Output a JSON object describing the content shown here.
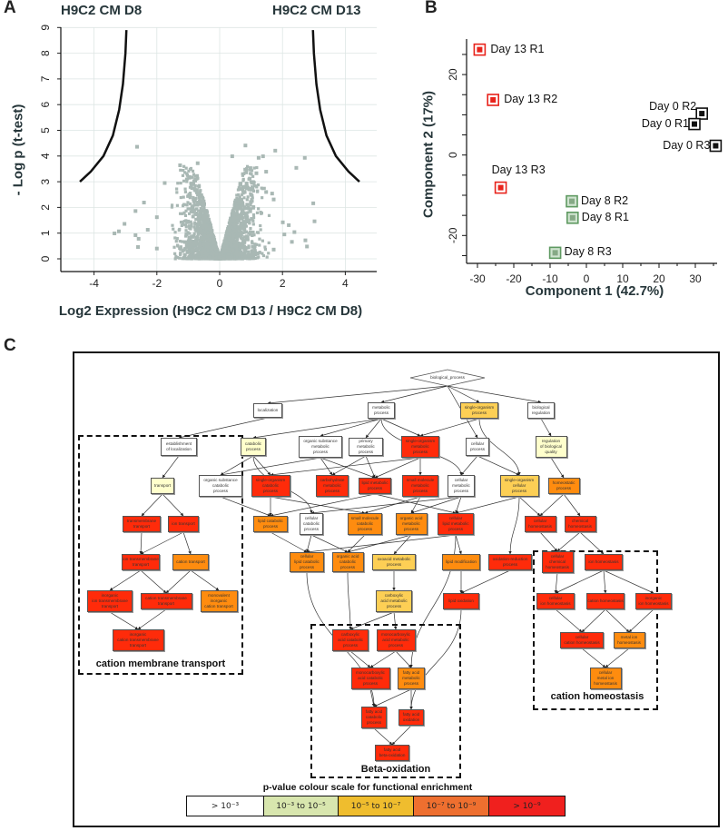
{
  "panel_labels": {
    "a": "A",
    "b": "B",
    "c": "C"
  },
  "chart_data": [
    {
      "type": "scatter",
      "panel": "A",
      "left_title": "H9C2 CM D8",
      "right_title": "H9C2 CM D13",
      "xlabel": "Log2 Expression (H9C2 CM D13 / H9C2 CM D8)",
      "ylabel": "- Log p (t-test)",
      "xlim": [
        -5,
        5
      ],
      "ylim": [
        -0.5,
        9
      ],
      "xticks": [
        -4,
        -2,
        0,
        2,
        4
      ],
      "yticks": [
        0,
        1,
        2,
        3,
        4,
        5,
        6,
        7,
        8,
        9
      ],
      "grid": true,
      "point_color": "#a9b8b4",
      "points": [
        [
          -2.63,
          4.36
        ],
        [
          0.82,
          4.41
        ],
        [
          1.77,
          4.21
        ],
        [
          2.71,
          3.93
        ],
        [
          2.44,
          3.54
        ],
        [
          2.98,
          2.16
        ],
        [
          3.02,
          1.46
        ],
        [
          2.73,
          0.72
        ],
        [
          2.78,
          0.48
        ],
        [
          -3.35,
          0.99
        ],
        [
          -3.21,
          1.07
        ],
        [
          -3.03,
          1.36
        ],
        [
          -2.68,
          1.86
        ],
        [
          -2.41,
          2.19
        ],
        [
          -2.68,
          0.92
        ],
        [
          -2.58,
          0.78
        ],
        [
          -2.6,
          0.46
        ],
        [
          -2.29,
          1.13
        ],
        [
          -2.0,
          0.4
        ],
        [
          -2.0,
          1.62
        ],
        [
          -1.75,
          2.95
        ],
        [
          -1.26,
          3.64
        ],
        [
          -0.7,
          3.72
        ],
        [
          0.4,
          3.99
        ],
        [
          1.38,
          3.99
        ],
        [
          1.24,
          3.93
        ],
        [
          0.98,
          3.53
        ],
        [
          1.17,
          3.33
        ],
        [
          1.48,
          3.39
        ],
        [
          2.38,
          1.04
        ],
        [
          2.2,
          1.31
        ],
        [
          2.01,
          1.42
        ],
        [
          1.72,
          0.36
        ],
        [
          2.3,
          0.66
        ],
        [
          2.06,
          0.95
        ],
        [
          1.48,
          2.6
        ],
        [
          1.67,
          2.54
        ],
        [
          1.72,
          2.31
        ]
      ],
      "threshold_curves": [
        [
          [
            -4.45,
            3
          ],
          [
            -4.1,
            3.4
          ],
          [
            -3.7,
            4.0
          ],
          [
            -3.4,
            4.8
          ],
          [
            -3.2,
            5.8
          ],
          [
            -3.08,
            6.8
          ],
          [
            -3.0,
            8.0
          ],
          [
            -2.97,
            8.9
          ]
        ],
        [
          [
            4.45,
            3
          ],
          [
            4.1,
            3.4
          ],
          [
            3.7,
            4.0
          ],
          [
            3.4,
            4.8
          ],
          [
            3.2,
            5.8
          ],
          [
            3.08,
            6.8
          ],
          [
            3.0,
            8.0
          ],
          [
            2.97,
            8.9
          ]
        ]
      ],
      "curve_color": "#111111"
    },
    {
      "type": "scatter",
      "panel": "B",
      "xlabel": "Component 1 (42.7%)",
      "ylabel": "Component 2 (17%)",
      "xlim": [
        -32,
        38
      ],
      "ylim": [
        -27,
        28
      ],
      "xticks": [
        -30,
        -20,
        -10,
        0,
        10,
        20,
        30
      ],
      "yticks": [
        -20,
        0,
        20
      ],
      "grid": false,
      "series": [
        {
          "color": "#e8231b",
          "points": [
            {
              "label": "Day 13 R1",
              "x": -29.4,
              "y": 26.2
            },
            {
              "label": "Day 13 R2",
              "x": -25.7,
              "y": 13.7
            },
            {
              "label": "Day 13 R3",
              "x": -23.6,
              "y": -8.1
            }
          ]
        },
        {
          "color": "#111111",
          "points": [
            {
              "label": "Day 0 R2",
              "x": 31.8,
              "y": 10.3
            },
            {
              "label": "Day 0 R1",
              "x": 29.75,
              "y": 7.7
            },
            {
              "label": "Day 0 R3",
              "x": 35.6,
              "y": 2.3
            }
          ]
        },
        {
          "color": "#5f9a62",
          "points": [
            {
              "label": "Day 8 R2",
              "x": -4.0,
              "y": -11.5
            },
            {
              "label": "Day 8 R1",
              "x": -3.8,
              "y": -15.6
            },
            {
              "label": "Day 8 R3",
              "x": -8.6,
              "y": -24.3
            }
          ]
        }
      ]
    }
  ],
  "diagram": {
    "colors": {
      "w": "#ffffff",
      "ly": "#ffffcc",
      "yo": "#fdcf55",
      "o": "#ff8c0f",
      "r": "#ff2b0a"
    },
    "nodes": [
      {
        "id": "bp",
        "label": "biological_process",
        "c": "w"
      },
      {
        "id": "loc",
        "label": "localization",
        "c": "w"
      },
      {
        "id": "met",
        "label": "metabolic\nprocess",
        "c": "w"
      },
      {
        "id": "so",
        "label": "single-organism\nprocess",
        "c": "yo"
      },
      {
        "id": "breg",
        "label": "biological\nregulation",
        "c": "w"
      },
      {
        "id": "estloc",
        "label": "establishment\nof localization",
        "c": "w"
      },
      {
        "id": "cat",
        "label": "catabolic\nprocess",
        "c": "ly"
      },
      {
        "id": "osm",
        "label": "organic substance\nmetabolic\nprocess",
        "c": "w"
      },
      {
        "id": "prim",
        "label": "primary metabolic\nprocess",
        "c": "w"
      },
      {
        "id": "som",
        "label": "single-organism\nmetabolic\nprocess",
        "c": "r"
      },
      {
        "id": "cell",
        "label": "cellular\nprocess",
        "c": "w"
      },
      {
        "id": "rbq",
        "label": "regulation\nof biological\nquality",
        "c": "ly"
      },
      {
        "id": "trans",
        "label": "transport",
        "c": "ly"
      },
      {
        "id": "osc",
        "label": "organic substance\ncatabolic\nprocess",
        "c": "w"
      },
      {
        "id": "soc",
        "label": "single-organism\ncatabolic\nprocess",
        "c": "r"
      },
      {
        "id": "carb",
        "label": "carbohydrate\nmetabolic\nprocess",
        "c": "r"
      },
      {
        "id": "lipm",
        "label": "lipid metabolic\nprocess",
        "c": "r"
      },
      {
        "id": "smm",
        "label": "small molecule\nmetabolic\nprocess",
        "c": "r"
      },
      {
        "id": "cm",
        "label": "cellular\nmetabolic\nprocess",
        "c": "w"
      },
      {
        "id": "socell",
        "label": "single-organism\ncellular\nprocess",
        "c": "yo"
      },
      {
        "id": "homeo",
        "label": "homeostatic\nprocess",
        "c": "o"
      },
      {
        "id": "tmt",
        "label": "transmembrane\ntransport",
        "c": "r"
      },
      {
        "id": "iont",
        "label": "ion transport",
        "c": "r"
      },
      {
        "id": "lipc",
        "label": "lipid catabolic\nprocess",
        "c": "o"
      },
      {
        "id": "cc",
        "label": "cellular\ncatabolic\nprocess",
        "c": "w"
      },
      {
        "id": "smc",
        "label": "small molecule\ncatabolic\nprocess",
        "c": "o"
      },
      {
        "id": "oam",
        "label": "organic acid\nmetabolic\nprocess",
        "c": "o"
      },
      {
        "id": "clm",
        "label": "cellular\nlipid metabolic\nprocess",
        "c": "r"
      },
      {
        "id": "ch",
        "label": "cellular\nhomeostasis",
        "c": "r"
      },
      {
        "id": "chem",
        "label": "chemical\nhomeostasis",
        "c": "r"
      },
      {
        "id": "iontm",
        "label": "ion transmembrane\ntransport",
        "c": "r"
      },
      {
        "id": "catt",
        "label": "cation transport",
        "c": "o"
      },
      {
        "id": "iitm",
        "label": "inorganic\nion transmembrane\ntransport",
        "c": "r"
      },
      {
        "id": "ctm",
        "label": "cation transmembrane\ntransport",
        "c": "r"
      },
      {
        "id": "mono",
        "label": "monovalent\ninorganic\ncation transport",
        "c": "o"
      },
      {
        "id": "ictm",
        "label": "inorganic\ncation transmembrane\ntransport",
        "c": "r"
      },
      {
        "id": "clc",
        "label": "cellular\nlipid catabolic\nprocess",
        "c": "o"
      },
      {
        "id": "oac",
        "label": "organic acid\ncatabolic\nprocess",
        "c": "o"
      },
      {
        "id": "oxo",
        "label": "oxoacid metabolic\nprocess",
        "c": "yo"
      },
      {
        "id": "lmod",
        "label": "lipid modification",
        "c": "o"
      },
      {
        "id": "redox",
        "label": "oxidation-reduction\nprocess",
        "c": "r"
      },
      {
        "id": "cch",
        "label": "cellular\nchemical\nhomeostasis",
        "c": "r"
      },
      {
        "id": "ionh",
        "label": "ion homeostasis",
        "c": "r"
      },
      {
        "id": "cam",
        "label": "carboxylic\nacid metabolic\nprocess",
        "c": "yo"
      },
      {
        "id": "lox",
        "label": "lipid oxidation",
        "c": "r"
      },
      {
        "id": "cih",
        "label": "cellular\nion homeostasis",
        "c": "r"
      },
      {
        "id": "cath",
        "label": "cation homeostasis",
        "c": "r"
      },
      {
        "id": "iih",
        "label": "inorganic\nion homeostasis",
        "c": "r"
      },
      {
        "id": "cac",
        "label": "carboxylic\nacid catabolic\nprocess",
        "c": "r"
      },
      {
        "id": "mcam",
        "label": "monocarboxylic\nacid metabolic\nprocess",
        "c": "r"
      },
      {
        "id": "ccath",
        "label": "cellular\ncation homeostasis",
        "c": "r"
      },
      {
        "id": "mih",
        "label": "metal ion\nhomeostasis",
        "c": "o"
      },
      {
        "id": "mcac",
        "label": "monocarboxylic\nacid catabolic\nprocess",
        "c": "r"
      },
      {
        "id": "fam",
        "label": "fatty acid\nmetabolic\nprocess",
        "c": "o"
      },
      {
        "id": "cmih",
        "label": "cellular\nmetal ion\nhomeostasis",
        "c": "o"
      },
      {
        "id": "fac",
        "label": "fatty acid\ncatabolic\nprocess",
        "c": "r"
      },
      {
        "id": "fao",
        "label": "fatty acid\noxidation",
        "c": "r"
      },
      {
        "id": "fabo",
        "label": "fatty acid\nbeta-oxidation",
        "c": "r"
      }
    ],
    "edges": [
      [
        "bp",
        "loc"
      ],
      [
        "bp",
        "met"
      ],
      [
        "bp",
        "so"
      ],
      [
        "bp",
        "breg"
      ],
      [
        "bp",
        "cell"
      ],
      [
        "loc",
        "estloc"
      ],
      [
        "met",
        "osm"
      ],
      [
        "met",
        "prim"
      ],
      [
        "met",
        "som"
      ],
      [
        "met",
        "cm"
      ],
      [
        "met",
        "cat"
      ],
      [
        "so",
        "som"
      ],
      [
        "so",
        "socell"
      ],
      [
        "breg",
        "rbq"
      ],
      [
        "estloc",
        "trans"
      ],
      [
        "cat",
        "osc"
      ],
      [
        "cat",
        "soc"
      ],
      [
        "cat",
        "cc"
      ],
      [
        "osm",
        "carb"
      ],
      [
        "osm",
        "lipm"
      ],
      [
        "osm",
        "osc"
      ],
      [
        "prim",
        "lipm"
      ],
      [
        "prim",
        "carb"
      ],
      [
        "som",
        "lipm"
      ],
      [
        "som",
        "smm"
      ],
      [
        "som",
        "soc"
      ],
      [
        "cell",
        "cm"
      ],
      [
        "cell",
        "socell"
      ],
      [
        "rbq",
        "homeo"
      ],
      [
        "trans",
        "tmt"
      ],
      [
        "trans",
        "iont"
      ],
      [
        "osc",
        "lipc"
      ],
      [
        "soc",
        "lipc"
      ],
      [
        "soc",
        "smc"
      ],
      [
        "lipm",
        "lipc"
      ],
      [
        "lipm",
        "clm"
      ],
      [
        "smm",
        "smc"
      ],
      [
        "smm",
        "oam"
      ],
      [
        "cm",
        "cc"
      ],
      [
        "cm",
        "oam"
      ],
      [
        "cm",
        "clm"
      ],
      [
        "socell",
        "clm"
      ],
      [
        "socell",
        "ch"
      ],
      [
        "socell",
        "redox"
      ],
      [
        "homeo",
        "ch"
      ],
      [
        "homeo",
        "chem"
      ],
      [
        "tmt",
        "iontm"
      ],
      [
        "iont",
        "iontm"
      ],
      [
        "iont",
        "catt"
      ],
      [
        "iontm",
        "iitm"
      ],
      [
        "iontm",
        "ctm"
      ],
      [
        "catt",
        "ctm"
      ],
      [
        "catt",
        "mono"
      ],
      [
        "iitm",
        "ictm"
      ],
      [
        "ctm",
        "ictm"
      ],
      [
        "lipc",
        "clc"
      ],
      [
        "cc",
        "clc"
      ],
      [
        "cc",
        "oac"
      ],
      [
        "smc",
        "oac"
      ],
      [
        "oam",
        "oac"
      ],
      [
        "oam",
        "oxo"
      ],
      [
        "clm",
        "clc"
      ],
      [
        "clm",
        "lmod"
      ],
      [
        "ch",
        "cch"
      ],
      [
        "chem",
        "cch"
      ],
      [
        "chem",
        "ionh"
      ],
      [
        "oxo",
        "cam"
      ],
      [
        "lmod",
        "lox"
      ],
      [
        "redox",
        "lox"
      ],
      [
        "cch",
        "cih"
      ],
      [
        "ionh",
        "cih"
      ],
      [
        "ionh",
        "cath"
      ],
      [
        "ionh",
        "iih"
      ],
      [
        "oac",
        "cac"
      ],
      [
        "cam",
        "cac"
      ],
      [
        "cam",
        "mcam"
      ],
      [
        "cih",
        "ccath"
      ],
      [
        "cath",
        "ccath"
      ],
      [
        "cath",
        "mih"
      ],
      [
        "iih",
        "mih"
      ],
      [
        "cac",
        "mcac"
      ],
      [
        "mcam",
        "mcac"
      ],
      [
        "mcam",
        "fam"
      ],
      [
        "clm",
        "fam"
      ],
      [
        "ccath",
        "cmih"
      ],
      [
        "mih",
        "cmih"
      ],
      [
        "clc",
        "fac"
      ],
      [
        "mcac",
        "fac"
      ],
      [
        "fam",
        "fac"
      ],
      [
        "fam",
        "fao"
      ],
      [
        "lox",
        "fao"
      ],
      [
        "fac",
        "fabo"
      ],
      [
        "fao",
        "fabo"
      ]
    ],
    "groups": {
      "transport": "cation membrane transport",
      "beta": "Beta-oxidation",
      "homeostasis": "cation homeostasis"
    },
    "legend": {
      "title": "p-value colour scale for functional enrichment",
      "items": [
        {
          "label": "> 10⁻³",
          "color": "#ffffff"
        },
        {
          "label": "10⁻³  to  10⁻⁵",
          "color": "#d8e6ae"
        },
        {
          "label": "10⁻⁵  to  10⁻⁷",
          "color": "#efbd2e"
        },
        {
          "label": "10⁻⁷  to  10⁻⁹",
          "color": "#ee6f2f"
        },
        {
          "label": ">  10⁻⁹",
          "color": "#f0201e"
        }
      ]
    }
  }
}
